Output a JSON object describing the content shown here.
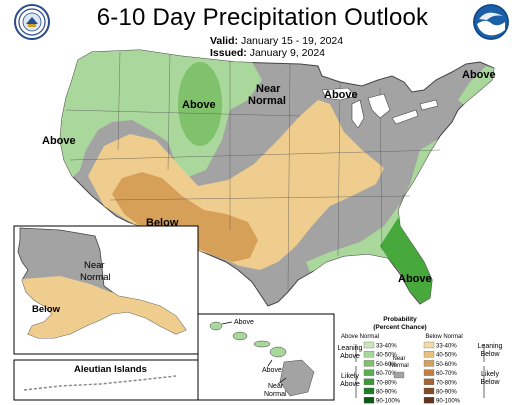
{
  "map": {
    "title": "6-10 Day Precipitation Outlook",
    "valid_label": "Valid:",
    "valid_dates": "January 15 - 19, 2024",
    "issued_label": "Issued:",
    "issued_date": "January 9, 2024",
    "logos": [
      {
        "name": "department-of-commerce-seal",
        "text": "DEPARTMENT OF COMMERCE"
      },
      {
        "name": "noaa-logo",
        "text": "NOAA"
      }
    ],
    "conus_labels": {
      "above_west": "Above",
      "above_north_rockies": "Above",
      "near_normal_north": "Near Normal",
      "above_great_lakes": "Above",
      "above_new_england": "Above",
      "below_southwest": "Below",
      "above_florida": "Above"
    },
    "alaska": {
      "near_normal": "Near Normal",
      "below": "Below",
      "aleutian": "Aleutian Islands"
    },
    "hawaii": {
      "above_north": "Above",
      "above_south": "Above",
      "near_normal": "Near Normal"
    },
    "colors": {
      "above": "#a9d79c",
      "above_40": "#7fc26b",
      "above_50": "#47a83c",
      "above_60": "#1e8a24",
      "below": "#efcd8e",
      "below_40": "#d7a058",
      "near_normal": "#a3a3a3",
      "water": "#ffffff",
      "border": "#444444"
    }
  },
  "legend": {
    "title": "Probability (Percent Chance)",
    "above_header": "Above Normal",
    "below_header": "Below Normal",
    "near_normal": "Near Normal",
    "leaning_above": "Leaning Above",
    "likely_above": "Likely Above",
    "leaning_below": "Leaning Below",
    "likely_below": "Likely Below",
    "above_bins": [
      {
        "label": "33-40%",
        "color": "#c9e6bc"
      },
      {
        "label": "40-50%",
        "color": "#a9d79c"
      },
      {
        "label": "50-60%",
        "color": "#7fc26b"
      },
      {
        "label": "60-70%",
        "color": "#5aaf50"
      },
      {
        "label": "70-80%",
        "color": "#3a9a3a"
      },
      {
        "label": "80-90%",
        "color": "#1e7d28"
      },
      {
        "label": "90-100%",
        "color": "#0b5a18"
      }
    ],
    "below_bins": [
      {
        "label": "33-40%",
        "color": "#f3dbaa"
      },
      {
        "label": "40-50%",
        "color": "#e9c07e"
      },
      {
        "label": "50-60%",
        "color": "#d7a058"
      },
      {
        "label": "60-70%",
        "color": "#c07f45"
      },
      {
        "label": "70-80%",
        "color": "#a66434"
      },
      {
        "label": "80-90%",
        "color": "#854a28"
      },
      {
        "label": "90-100%",
        "color": "#62331d"
      }
    ]
  }
}
